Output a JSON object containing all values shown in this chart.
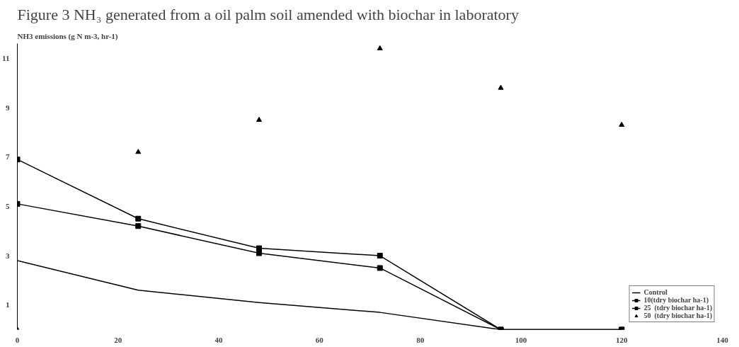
{
  "chart_data": {
    "type": "line",
    "title": "Figure 3 NH₃ generated from a oil palm soil amended with biochar in laboratory",
    "ylabel": "NH3 emissions (g N m-3, hr-1)",
    "x": [
      0,
      24,
      48,
      72,
      96,
      120
    ],
    "series": [
      {
        "name": "Control",
        "marker": "none",
        "color": "#000000",
        "values": [
          2.8,
          1.6,
          1.1,
          0.7,
          0,
          0
        ]
      },
      {
        "name": "10(tdry biochar ha-1)",
        "marker": "square",
        "color": "#000000",
        "values": [
          5.1,
          4.2,
          3.1,
          2.5,
          0,
          0
        ]
      },
      {
        "name": "25  (tdry biochar ha-1)",
        "marker": "square",
        "color": "#000000",
        "values": [
          6.9,
          4.5,
          3.3,
          3.0,
          0,
          0
        ]
      },
      {
        "name": "50  (tdry biochar ha-1)",
        "type": "scatter",
        "marker": "triangle",
        "color": "#000000",
        "values": [
          0,
          7.2,
          8.5,
          11.4,
          9.8,
          8.3
        ]
      }
    ],
    "xlim": [
      0,
      140
    ],
    "ylim": [
      0,
      11.6
    ],
    "xticks": [
      0,
      20,
      40,
      60,
      80,
      100,
      120,
      140
    ],
    "yticks": [
      1,
      3,
      5,
      7,
      9,
      11
    ],
    "grid": false,
    "legend": "bottom right"
  }
}
